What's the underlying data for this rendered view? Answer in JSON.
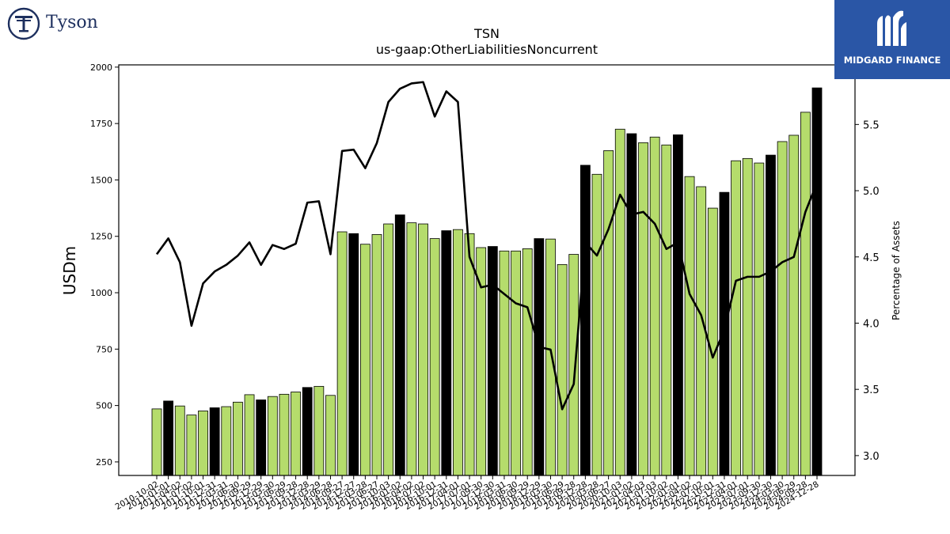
{
  "logos": {
    "left_text": "Tyson",
    "right_text": "MIDGARD FINANCE"
  },
  "colors": {
    "bar_green": "#b5dc6c",
    "bar_black": "#000000",
    "line": "#000000",
    "logo_navy": "#1d2f5e",
    "logo_blue": "#2a56a6"
  },
  "chart_data": {
    "type": "bar",
    "title": "TSN",
    "subtitle": "us-gaap:OtherLiabilitiesNoncurrent",
    "ylabel": "USDm",
    "y2label": "Percentage of Assets",
    "ylim": [
      190,
      2010
    ],
    "y2lim": [
      2.85,
      5.95
    ],
    "yticks": [
      250,
      500,
      750,
      1000,
      1250,
      1500,
      1750,
      2000
    ],
    "y2ticks": [
      "3.0",
      "3.5",
      "4.0",
      "4.5",
      "5.0",
      "5.5"
    ],
    "y2tick_values": [
      3.0,
      3.5,
      4.0,
      4.5,
      5.0,
      5.5
    ],
    "grid": false,
    "categories": [
      "2010-10-02",
      "2011-01-01",
      "2011-04-02",
      "2011-07-02",
      "2011-10-01",
      "2011-12-31",
      "2012-03-31",
      "2012-06-30",
      "2012-09-29",
      "2012-12-29",
      "2013-03-30",
      "2013-06-29",
      "2013-09-28",
      "2013-12-28",
      "2014-03-29",
      "2014-06-28",
      "2014-09-27",
      "2014-12-27",
      "2015-03-28",
      "2015-06-27",
      "2015-10-03",
      "2016-01-02",
      "2016-04-02",
      "2016-07-02",
      "2016-10-01",
      "2016-12-31",
      "2017-04-01",
      "2017-07-01",
      "2017-09-30",
      "2017-12-30",
      "2018-03-31",
      "2018-06-30",
      "2018-09-29",
      "2018-12-29",
      "2019-03-30",
      "2019-06-29",
      "2019-09-28",
      "2019-12-28",
      "2020-03-28",
      "2020-06-27",
      "2020-10-03",
      "2021-01-02",
      "2021-04-03",
      "2021-07-03",
      "2021-10-02",
      "2022-01-01",
      "2022-04-02",
      "2022-07-02",
      "2022-10-01",
      "2022-12-31",
      "2023-04-01",
      "2023-07-01",
      "2023-09-30",
      "2023-12-30",
      "2024-03-30",
      "2024-06-29",
      "2024-09-28",
      "2024-12-28"
    ],
    "series": [
      {
        "values": [
          485,
          520,
          498,
          458,
          476,
          490,
          495,
          515,
          548,
          525,
          540,
          550,
          560,
          580,
          585,
          545,
          1270,
          1262,
          1215,
          1258,
          1305,
          1345,
          1310,
          1305,
          1240,
          1275,
          1280,
          1262,
          1200,
          1205,
          1185,
          1185,
          1195,
          1240,
          1238,
          1125,
          1170,
          1565,
          1525,
          1630,
          1725,
          1705,
          1665,
          1690,
          1655,
          1700,
          1515,
          1470,
          1375,
          1445,
          1585,
          1595,
          1575,
          1610,
          1670,
          1698,
          1800,
          1908
        ],
        "highlight": [
          0,
          1,
          0,
          0,
          0,
          1,
          0,
          0,
          0,
          1,
          0,
          0,
          0,
          1,
          0,
          0,
          0,
          1,
          0,
          0,
          0,
          1,
          0,
          0,
          0,
          1,
          0,
          0,
          0,
          1,
          0,
          0,
          0,
          1,
          0,
          0,
          0,
          1,
          0,
          0,
          0,
          1,
          0,
          0,
          0,
          1,
          0,
          0,
          0,
          1,
          0,
          0,
          0,
          1,
          0,
          0,
          0,
          1
        ]
      },
      {
        "type": "line",
        "axis": "right",
        "values": [
          4.52,
          4.64,
          4.46,
          3.98,
          4.3,
          4.39,
          4.44,
          4.51,
          4.61,
          4.44,
          4.59,
          4.56,
          4.6,
          4.91,
          4.92,
          4.52,
          5.3,
          5.31,
          5.17,
          5.36,
          5.67,
          5.77,
          5.81,
          5.82,
          5.56,
          5.75,
          5.67,
          4.5,
          4.27,
          4.29,
          4.22,
          4.15,
          4.12,
          3.82,
          3.8,
          3.35,
          3.54,
          4.61,
          4.51,
          4.71,
          4.97,
          4.82,
          4.84,
          4.75,
          4.56,
          4.61,
          4.22,
          4.06,
          3.74,
          3.95,
          4.32,
          4.35,
          4.35,
          4.39,
          4.46,
          4.5,
          4.84,
          5.06
        ]
      }
    ]
  }
}
